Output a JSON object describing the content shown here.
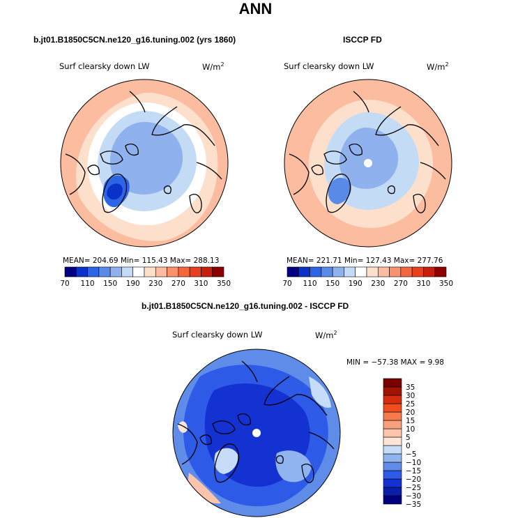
{
  "main_title": "ANN",
  "panels": [
    {
      "title": "b.jt01.B1850C5CN.ne120_g16.tuning.002 (yrs 1860)",
      "variable": "Surf clearsky down LW",
      "units_base": "W/m",
      "units_exp": "2",
      "stats": "MEAN= 204.69  Min= 115.43  Max= 288.13"
    },
    {
      "title": "ISCCP FD",
      "variable": "Surf clearsky down LW",
      "units_base": "W/m",
      "units_exp": "2",
      "stats": "MEAN= 221.71  Min= 127.43  Max= 277.76"
    },
    {
      "title": "b.jt01.B1850C5CN.ne120_g16.tuning.002 - ISCCP FD",
      "variable": "Surf clearsky down LW",
      "units_base": "W/m",
      "units_exp": "2",
      "stats": "MIN = −57.38 MAX =   9.98"
    }
  ],
  "colors": {
    "abs_scale": [
      "#000080",
      "#0a32c8",
      "#2e64e6",
      "#5a8ae8",
      "#8fb2ee",
      "#c4dbf6",
      "#ffffff",
      "#fde0cc",
      "#fcbca0",
      "#f9926c",
      "#f4663e",
      "#e8401e",
      "#c81e0e",
      "#8c0000"
    ],
    "diff_scale": [
      "#000080",
      "#0a1eaa",
      "#1432d2",
      "#2d5ae6",
      "#5f8ce8",
      "#90b4f0",
      "#c6dcf8",
      "#fde6d8",
      "#fcc4ac",
      "#f9a07c",
      "#f57a4c",
      "#f04e20",
      "#d72d0f",
      "#a01404",
      "#7a0000"
    ]
  },
  "chart_data": [
    {
      "type": "heatmap",
      "title": "b.jt01.B1850C5CN.ne120_g16.tuning.002 (yrs 1860)",
      "variable": "Surf clearsky down LW",
      "units": "W/m2",
      "projection": "north polar stereographic",
      "mean": 204.69,
      "min": 115.43,
      "max": 288.13,
      "levels": [
        70,
        90,
        110,
        130,
        150,
        170,
        190,
        210,
        230,
        250,
        270,
        290,
        310,
        330,
        350
      ],
      "tick_labels": [
        "70",
        "110",
        "150",
        "190",
        "230",
        "270",
        "310",
        "350"
      ]
    },
    {
      "type": "heatmap",
      "title": "ISCCP FD",
      "variable": "Surf clearsky down LW",
      "units": "W/m2",
      "projection": "north polar stereographic",
      "mean": 221.71,
      "min": 127.43,
      "max": 277.76,
      "levels": [
        70,
        90,
        110,
        130,
        150,
        170,
        190,
        210,
        230,
        250,
        270,
        290,
        310,
        330,
        350
      ],
      "tick_labels": [
        "70",
        "110",
        "150",
        "190",
        "230",
        "270",
        "310",
        "350"
      ]
    },
    {
      "type": "heatmap",
      "title": "b.jt01.B1850C5CN.ne120_g16.tuning.002 - ISCCP FD",
      "variable": "Surf clearsky down LW",
      "units": "W/m2",
      "projection": "north polar stereographic",
      "min": -57.38,
      "max": 9.98,
      "levels": [
        -35,
        -30,
        -25,
        -20,
        -15,
        -10,
        -5,
        0,
        5,
        10,
        15,
        20,
        25,
        30,
        35
      ],
      "tick_labels": [
        "35",
        "30",
        "25",
        "20",
        "15",
        "10",
        "5",
        "0",
        "−5",
        "−10",
        "−15",
        "−20",
        "−25",
        "−30",
        "−35"
      ]
    }
  ]
}
